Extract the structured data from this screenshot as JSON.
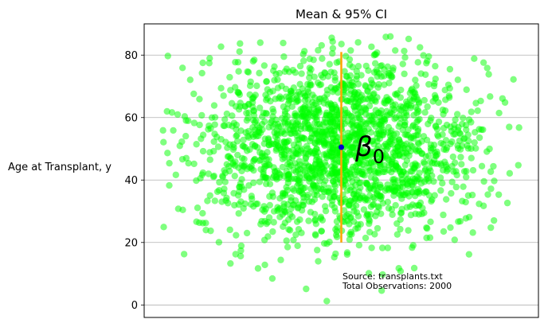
{
  "chart_data": {
    "type": "scatter",
    "title": "Mean & 95% CI",
    "xlabel": "",
    "ylabel": "Age at Transplant, y",
    "ylim": [
      -4,
      90
    ],
    "xlim": [
      -0.05,
      1.05
    ],
    "y_ticks": [
      "0",
      "20",
      "40",
      "60",
      "80"
    ],
    "y_tick_values": [
      0,
      20,
      40,
      60,
      80
    ],
    "x_ticks": [],
    "grid": "horizontal",
    "point_count": 2000,
    "point_color": "#00ff00",
    "point_alpha": 0.5,
    "x_distribution": "uniform-jitter",
    "y_distribution": "normal",
    "y_mean": 50.5,
    "y_sd": 15,
    "mean": {
      "x": 0.5,
      "y": 50.5,
      "color": "#0000cc"
    },
    "ci_95": {
      "x": 0.5,
      "low": 20,
      "high": 81,
      "color": "#ffa500"
    },
    "mean_label": {
      "text": "β",
      "subscript": "0"
    },
    "annotation": {
      "lines": [
        "Source: transplants.txt",
        "Total Observations: 2000"
      ]
    }
  }
}
